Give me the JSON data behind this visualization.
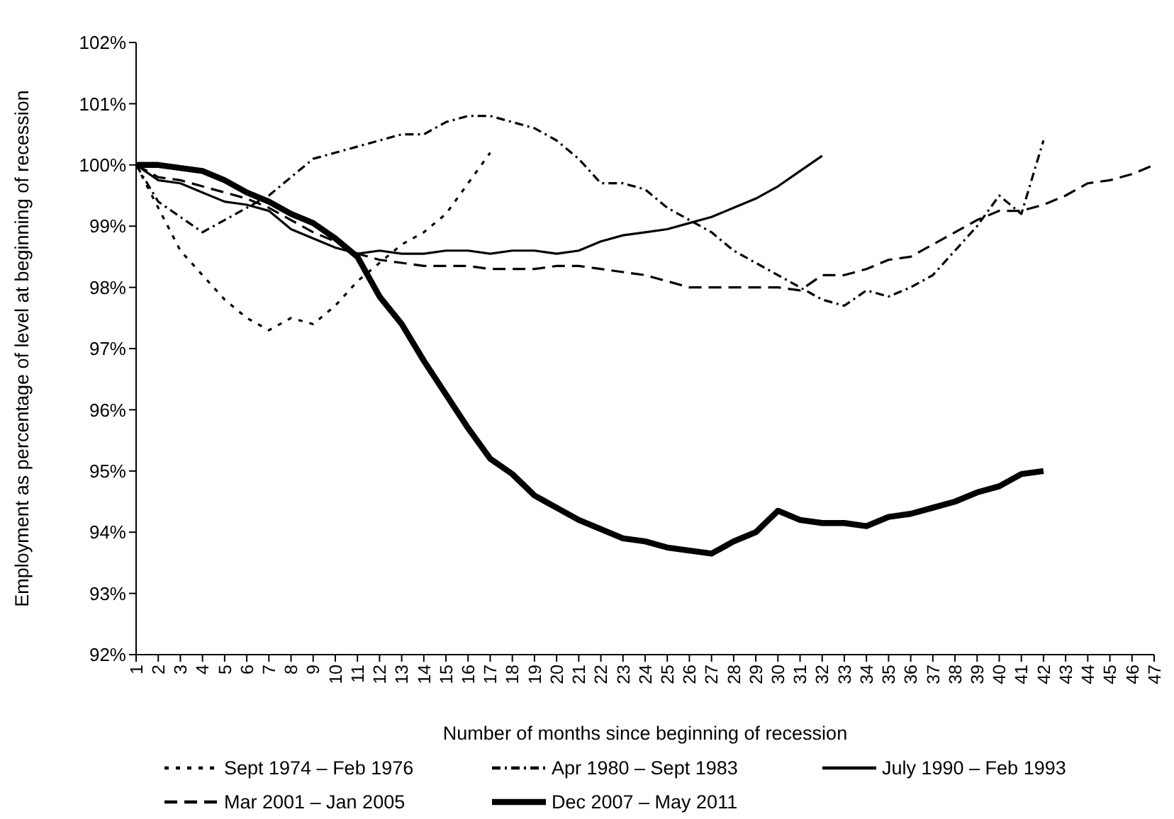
{
  "chart_data": {
    "type": "line",
    "xlabel": "Number of months since beginning of recession",
    "ylabel": "Employment as percentage of level at beginning of recession",
    "categories": [
      "1",
      "2",
      "3",
      "4",
      "5",
      "6",
      "7",
      "8",
      "9",
      "10",
      "11",
      "12",
      "13",
      "14",
      "15",
      "16",
      "17",
      "18",
      "19",
      "20",
      "21",
      "22",
      "23",
      "24",
      "25",
      "26",
      "27",
      "28",
      "29",
      "30",
      "31",
      "32",
      "33",
      "34",
      "35",
      "36",
      "37",
      "38",
      "39",
      "40",
      "41",
      "42",
      "43",
      "44",
      "45",
      "46",
      "47"
    ],
    "ylim": [
      92,
      102
    ],
    "yticks": [
      {
        "value": 92,
        "label": "92%"
      },
      {
        "value": 93,
        "label": "93%"
      },
      {
        "value": 94,
        "label": "94%"
      },
      {
        "value": 95,
        "label": "95%"
      },
      {
        "value": 96,
        "label": "96%"
      },
      {
        "value": 97,
        "label": "97%"
      },
      {
        "value": 98,
        "label": "98%"
      },
      {
        "value": 99,
        "label": "99%"
      },
      {
        "value": 100,
        "label": "100%"
      },
      {
        "value": 101,
        "label": "101%"
      },
      {
        "value": 102,
        "label": "102%"
      }
    ],
    "legend": "bottom",
    "grid": false,
    "marker": "none",
    "series": [
      {
        "name": "Sept 1974 – Feb 1976",
        "color": "#000000",
        "line_style": "dotted",
        "values": [
          100,
          99.3,
          98.6,
          98.2,
          97.8,
          97.5,
          97.3,
          97.5,
          97.4,
          97.7,
          98.1,
          98.4,
          98.7,
          98.9,
          99.2,
          99.7,
          100.2,
          null,
          null,
          null,
          null,
          null,
          null,
          null,
          null,
          null,
          null,
          null,
          null,
          null,
          null,
          null,
          null,
          null,
          null,
          null,
          null,
          null,
          null,
          null,
          null,
          null,
          null,
          null,
          null,
          null,
          null
        ]
      },
      {
        "name": "Apr 1980 – Sept 1983",
        "color": "#000000",
        "line_style": "dashdot",
        "values": [
          100,
          99.4,
          99.15,
          98.9,
          99.1,
          99.3,
          99.5,
          99.8,
          100.1,
          100.2,
          100.3,
          100.4,
          100.5,
          100.5,
          100.7,
          100.8,
          100.8,
          100.7,
          100.6,
          100.4,
          100.1,
          99.7,
          99.7,
          99.6,
          99.3,
          99.1,
          98.9,
          98.6,
          98.4,
          98.2,
          98.0,
          97.8,
          97.7,
          97.95,
          97.85,
          98.0,
          98.2,
          98.6,
          99.0,
          99.5,
          99.2,
          100.4,
          null,
          null,
          null,
          null,
          null
        ]
      },
      {
        "name": "July 1990 – Feb 1993",
        "color": "#000000",
        "line_style": "solid",
        "values": [
          100,
          99.75,
          99.7,
          99.55,
          99.4,
          99.35,
          99.25,
          98.95,
          98.8,
          98.65,
          98.55,
          98.6,
          98.55,
          98.55,
          98.6,
          98.6,
          98.55,
          98.6,
          98.6,
          98.55,
          98.6,
          98.75,
          98.85,
          98.9,
          98.95,
          99.05,
          99.15,
          99.3,
          99.45,
          99.65,
          99.9,
          100.15,
          null,
          null,
          null,
          null,
          null,
          null,
          null,
          null,
          null,
          null,
          null,
          null,
          null,
          null,
          null
        ]
      },
      {
        "name": "Mar 2001 – Jan 2005",
        "color": "#000000",
        "line_style": "dashed",
        "values": [
          100,
          99.8,
          99.75,
          99.65,
          99.55,
          99.45,
          99.3,
          99.1,
          98.9,
          98.75,
          98.55,
          98.45,
          98.4,
          98.35,
          98.35,
          98.35,
          98.3,
          98.3,
          98.3,
          98.35,
          98.35,
          98.3,
          98.25,
          98.2,
          98.1,
          98.0,
          98.0,
          98.0,
          98.0,
          98.0,
          97.95,
          98.2,
          98.2,
          98.3,
          98.45,
          98.5,
          98.7,
          98.9,
          99.1,
          99.25,
          99.25,
          99.35,
          99.5,
          99.7,
          99.75,
          99.85,
          100.0
        ]
      },
      {
        "name": "Dec 2007 – May 2011",
        "color": "#000000",
        "line_style": "solid",
        "values": [
          100,
          100.0,
          99.95,
          99.9,
          99.75,
          99.55,
          99.4,
          99.2,
          99.05,
          98.8,
          98.5,
          97.85,
          97.4,
          96.8,
          96.25,
          95.7,
          95.2,
          94.95,
          94.6,
          94.4,
          94.2,
          94.05,
          93.9,
          93.85,
          93.75,
          93.7,
          93.65,
          93.85,
          94.0,
          94.35,
          94.2,
          94.15,
          94.15,
          94.1,
          94.25,
          94.3,
          94.4,
          94.5,
          94.65,
          94.75,
          94.95,
          95.0,
          null,
          null,
          null,
          null,
          null
        ]
      }
    ]
  }
}
